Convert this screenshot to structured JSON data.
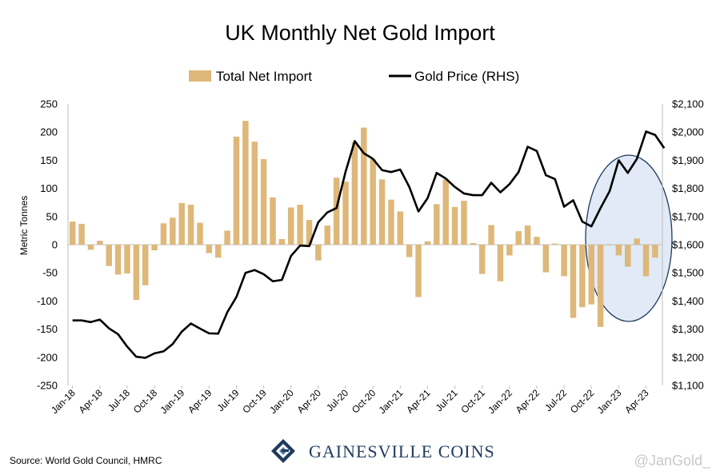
{
  "chart_data": {
    "type": "bar",
    "title": "UK Monthly Net Gold Import",
    "ylabel": "Metric Tonnes",
    "ylim": [
      -250,
      250
    ],
    "yticks": [
      250,
      200,
      150,
      100,
      50,
      0,
      -50,
      -100,
      -150,
      -200,
      -250
    ],
    "y2lim": [
      1100,
      2100
    ],
    "y2ticks": [
      "$2,100",
      "$2,000",
      "$1,900",
      "$1,800",
      "$1,700",
      "$1,600",
      "$1,500",
      "$1,400",
      "$1,300",
      "$1,200",
      "$1,100"
    ],
    "y2tick_values": [
      2100,
      2000,
      1900,
      1800,
      1700,
      1600,
      1500,
      1400,
      1300,
      1200,
      1100
    ],
    "legend_position": "top",
    "grid": false,
    "x_tick_labels": [
      "Jan-18",
      "Apr-18",
      "Jul-18",
      "Oct-18",
      "Jan-19",
      "Apr-19",
      "Jul-19",
      "Oct-19",
      "Jan-20",
      "Apr-20",
      "Jul-20",
      "Oct-20",
      "Jan-21",
      "Apr-21",
      "Jul-21",
      "Oct-21",
      "Jan-22",
      "Apr-22",
      "Jul-22",
      "Oct-22",
      "Jan-23",
      "Apr-23"
    ],
    "series": [
      {
        "name": "Total Net Import",
        "kind": "bar",
        "color": "#deb87a",
        "values": [
          41,
          37,
          -9,
          7,
          -38,
          -53,
          -51,
          -98,
          -72,
          -10,
          38,
          48,
          74,
          71,
          39,
          -15,
          -23,
          25,
          192,
          220,
          183,
          152,
          84,
          10,
          66,
          71,
          44,
          -28,
          34,
          119,
          112,
          182,
          208,
          152,
          116,
          80,
          59,
          -22,
          -93,
          6,
          72,
          116,
          67,
          78,
          3,
          -52,
          35,
          -65,
          -19,
          24,
          34,
          14,
          -49,
          2,
          -56,
          -130,
          -111,
          -106,
          -146,
          -1,
          -19,
          -39,
          11,
          -56,
          -23
        ]
      },
      {
        "name": "Gold Price (RHS)",
        "kind": "line",
        "color": "#000000",
        "values": [
          1331,
          1331,
          1325,
          1334,
          1303,
          1282,
          1238,
          1202,
          1198,
          1214,
          1221,
          1247,
          1291,
          1320,
          1302,
          1285,
          1284,
          1360,
          1414,
          1500,
          1510,
          1495,
          1470,
          1475,
          1560,
          1597,
          1595,
          1680,
          1715,
          1730,
          1860,
          1968,
          1925,
          1905,
          1865,
          1858,
          1867,
          1805,
          1718,
          1765,
          1855,
          1835,
          1805,
          1782,
          1776,
          1776,
          1820,
          1786,
          1815,
          1858,
          1948,
          1933,
          1847,
          1833,
          1735,
          1758,
          1682,
          1665,
          1730,
          1790,
          1900,
          1855,
          1905,
          2002,
          1990,
          1943
        ]
      }
    ],
    "annotations": [
      {
        "type": "ellipse",
        "highlight": "Nov-22 to Jun-23",
        "fill": "#dce6f5",
        "stroke": "#1e3a5f"
      }
    ]
  },
  "footer": {
    "source": "Source: World Gold Council, HMRC",
    "brand": "GAINESVILLE COINS",
    "watermark": "@JanGold_"
  },
  "colors": {
    "bar": "#deb87a",
    "line": "#000000",
    "brand": "#1e3a5f",
    "highlight_fill": "#dce6f5"
  }
}
